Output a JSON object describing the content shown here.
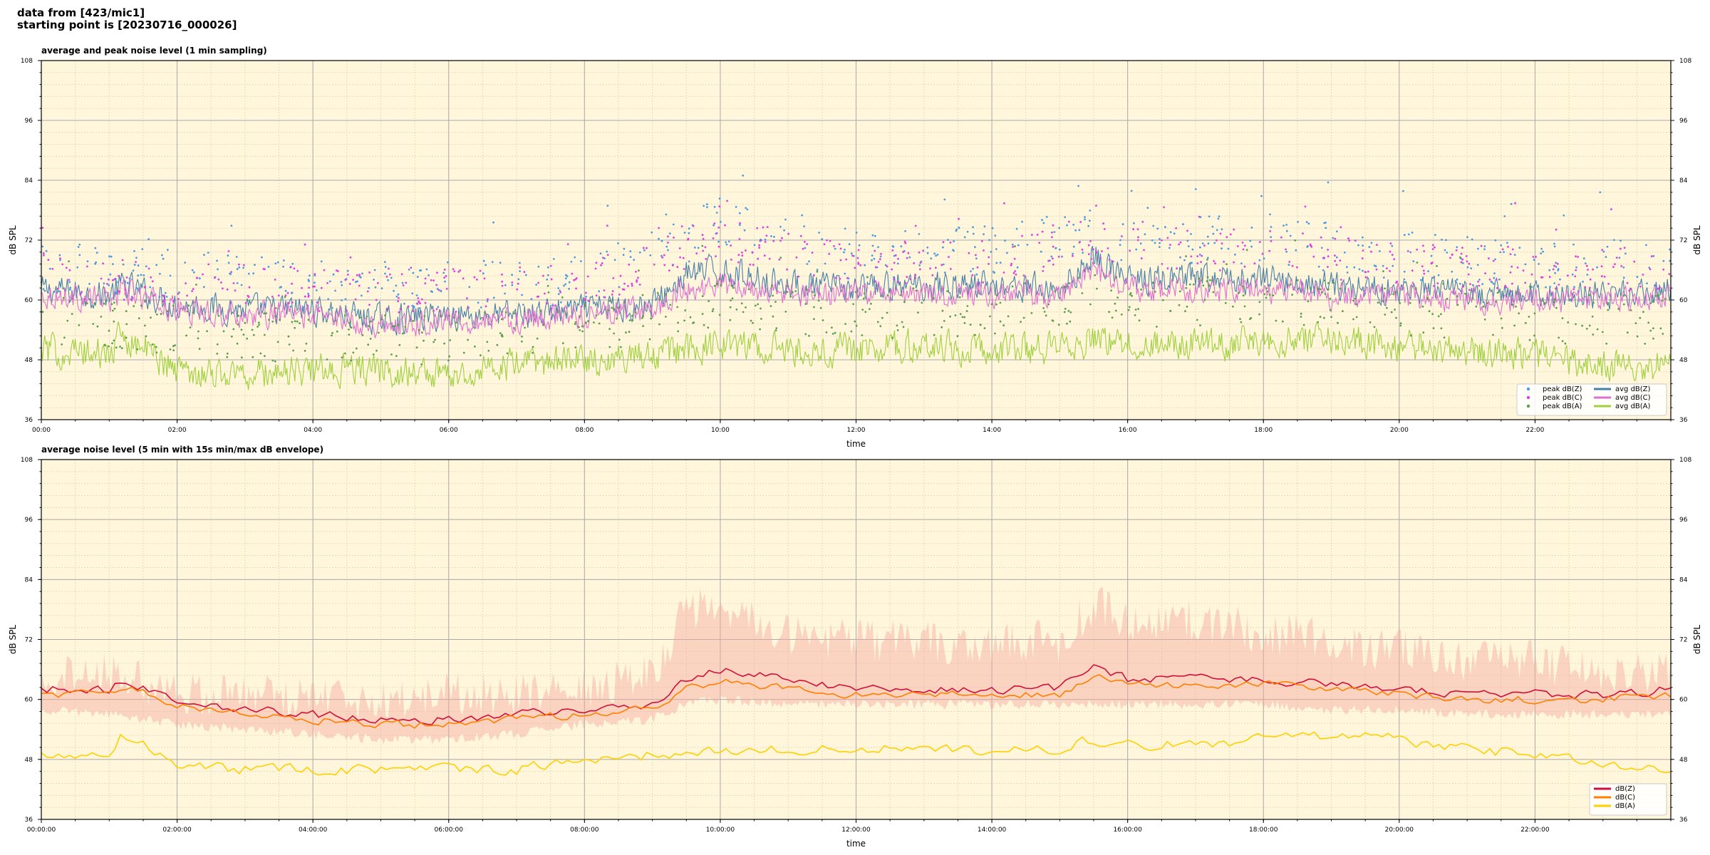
{
  "header": {
    "line1": "data from [423/mic1]",
    "line2": "starting point is [20230716_000026]"
  },
  "chart_data": [
    {
      "type": "line",
      "title": "average and peak noise level (1 min sampling)",
      "xlabel": "time",
      "ylabel": "dB SPL",
      "ylabel_right": "dB SPL",
      "ylim": [
        36,
        108
      ],
      "yticks": [
        36,
        48,
        60,
        72,
        84,
        96,
        108
      ],
      "xlim_hours": [
        0,
        24
      ],
      "xticks": [
        "00:00",
        "02:00",
        "04:00",
        "06:00",
        "08:00",
        "10:00",
        "12:00",
        "14:00",
        "16:00",
        "18:00",
        "20:00",
        "22:00"
      ],
      "grid": true,
      "background": "#fff6dc",
      "legend": "lower-right",
      "legend_items": [
        {
          "label": "peak dB(Z)",
          "kind": "dot",
          "color": "#4f9be0"
        },
        {
          "label": "peak dB(C)",
          "kind": "dot",
          "color": "#e040e0"
        },
        {
          "label": "peak dB(A)",
          "kind": "dot",
          "color": "#5aa050"
        },
        {
          "label": "avg dB(Z)",
          "kind": "line",
          "color": "#4a7fa8"
        },
        {
          "label": "avg dB(C)",
          "kind": "line",
          "color": "#e070d0"
        },
        {
          "label": "avg dB(A)",
          "kind": "line",
          "color": "#a0d040"
        }
      ],
      "series": [
        {
          "name": "avg dB(Z)",
          "color": "#4a7fa8",
          "hours": [
            0,
            1,
            1.2,
            2,
            3,
            4,
            5,
            6,
            7,
            8,
            9,
            9.5,
            10,
            11,
            12,
            13,
            14,
            15,
            15.5,
            16,
            17,
            18,
            19,
            20,
            21,
            22,
            23,
            24
          ],
          "values": [
            62,
            61,
            63,
            59,
            58,
            58,
            56,
            57,
            57,
            58,
            59,
            65,
            66,
            63,
            62,
            63,
            63,
            62,
            69,
            64,
            64,
            64,
            63,
            62,
            61,
            61,
            61,
            62
          ],
          "noise": 4
        },
        {
          "name": "avg dB(C)",
          "color": "#e070d0",
          "hours": [
            0,
            1,
            1.2,
            2,
            3,
            4,
            5,
            6,
            7,
            8,
            9,
            9.5,
            10,
            11,
            12,
            13,
            14,
            15,
            15.5,
            16,
            17,
            18,
            19,
            20,
            21,
            22,
            23,
            24
          ],
          "values": [
            61,
            60,
            62,
            58,
            57,
            57,
            55,
            56,
            56,
            57,
            58,
            62,
            63,
            61,
            61,
            61,
            61,
            61,
            66,
            62,
            62,
            62,
            61,
            61,
            60,
            60,
            60,
            61
          ],
          "noise": 3.5
        },
        {
          "name": "avg dB(A)",
          "color": "#a0d040",
          "hours": [
            0,
            1,
            1.2,
            2,
            3,
            4,
            5,
            6,
            7,
            8,
            9,
            9.5,
            10,
            11,
            12,
            13,
            14,
            15,
            15.5,
            16,
            17,
            18,
            19,
            20,
            21,
            22,
            23,
            24
          ],
          "values": [
            50,
            49,
            53,
            46,
            45,
            46,
            46,
            45,
            47,
            48,
            49,
            50,
            51,
            50,
            50,
            51,
            50,
            50,
            52,
            51,
            51,
            52,
            52,
            51,
            50,
            49,
            47,
            47
          ],
          "noise": 4.5
        },
        {
          "name": "peak dB(Z)",
          "kind": "dots",
          "color": "#4f9be0",
          "hours": [
            0,
            2,
            4,
            6,
            8,
            9.5,
            10,
            11,
            12,
            14,
            15.5,
            16,
            18,
            20,
            22,
            24
          ],
          "values": [
            66,
            65,
            63,
            63,
            64,
            72,
            76,
            71,
            69,
            70,
            75,
            72,
            72,
            69,
            67,
            67
          ],
          "noise": 5
        },
        {
          "name": "peak dB(C)",
          "kind": "dots",
          "color": "#e040e0",
          "hours": [
            0,
            2,
            4,
            6,
            8,
            9.5,
            10,
            11,
            12,
            14,
            15.5,
            16,
            18,
            20,
            22,
            24
          ],
          "values": [
            65,
            63,
            62,
            62,
            63,
            70,
            73,
            69,
            67,
            68,
            72,
            70,
            70,
            67,
            66,
            66
          ],
          "noise": 4.5
        },
        {
          "name": "peak dB(A)",
          "kind": "dots",
          "color": "#5aa050",
          "hours": [
            0,
            2,
            4,
            6,
            8,
            9.5,
            10,
            11,
            12,
            14,
            15.5,
            16,
            18,
            20,
            22,
            24
          ],
          "values": [
            56,
            54,
            52,
            52,
            54,
            58,
            60,
            58,
            57,
            58,
            61,
            59,
            60,
            58,
            56,
            56
          ],
          "noise": 5
        }
      ]
    },
    {
      "type": "line",
      "title": "average noise level (5 min with 15s min/max dB envelope)",
      "xlabel": "time",
      "ylabel": "dB SPL",
      "ylabel_right": "dB SPL",
      "ylim": [
        36,
        108
      ],
      "yticks": [
        36,
        48,
        60,
        72,
        84,
        96,
        108
      ],
      "xlim_hours": [
        0,
        24
      ],
      "xticks": [
        "00:00:00",
        "02:00:00",
        "04:00:00",
        "06:00:00",
        "08:00:00",
        "10:00:00",
        "12:00:00",
        "14:00:00",
        "16:00:00",
        "18:00:00",
        "20:00:00",
        "22:00:00"
      ],
      "grid": true,
      "background": "#fff6dc",
      "legend": "lower-right",
      "legend_items": [
        {
          "label": "dB(Z)",
          "kind": "line",
          "color": "#d0103a"
        },
        {
          "label": "dB(C)",
          "kind": "line",
          "color": "#ff8000"
        },
        {
          "label": "dB(A)",
          "kind": "line",
          "color": "#ffd000"
        }
      ],
      "envelope": {
        "color": "#f4a9a0",
        "opacity": 0.45,
        "hours": [
          0,
          1,
          2,
          3,
          4,
          5,
          6,
          7,
          8,
          9,
          9.5,
          10,
          11,
          12,
          13,
          14,
          15,
          15.5,
          16,
          17,
          18,
          19,
          20,
          21,
          22,
          23,
          24
        ],
        "upper": [
          68,
          70,
          66,
          65,
          66,
          64,
          66,
          65,
          67,
          70,
          82,
          84,
          78,
          76,
          76,
          76,
          76,
          84,
          80,
          80,
          78,
          76,
          74,
          72,
          72,
          70,
          70
        ],
        "lower": [
          57,
          56,
          54,
          53,
          52,
          51,
          51,
          52,
          54,
          55,
          58,
          59,
          58,
          58,
          58,
          58,
          58,
          58,
          58,
          58,
          58,
          57,
          57,
          56,
          56,
          56,
          56
        ]
      },
      "series": [
        {
          "name": "dB(Z)",
          "color": "#d0103a",
          "hours": [
            0,
            1,
            1.2,
            2,
            3,
            4,
            5,
            6,
            7,
            8,
            9,
            9.5,
            10,
            11,
            12,
            13,
            14,
            15,
            15.5,
            16,
            17,
            18,
            19,
            20,
            21,
            22,
            23,
            24
          ],
          "values": [
            62,
            62,
            64,
            60,
            58,
            57,
            56,
            56,
            57,
            58,
            59,
            64,
            66,
            64,
            62,
            62,
            62,
            62,
            67,
            64,
            64,
            64,
            63,
            62,
            61,
            61,
            61,
            62
          ],
          "noise": 1.2
        },
        {
          "name": "dB(C)",
          "color": "#ff8000",
          "hours": [
            0,
            1,
            1.2,
            2,
            3,
            4,
            5,
            6,
            7,
            8,
            9,
            9.5,
            10,
            11,
            12,
            13,
            14,
            15,
            15.5,
            16,
            17,
            18,
            19,
            20,
            21,
            22,
            23,
            24
          ],
          "values": [
            61,
            61,
            63,
            59,
            57,
            56,
            55,
            55,
            56,
            57,
            58,
            62,
            64,
            62,
            61,
            61,
            61,
            61,
            65,
            63,
            63,
            63,
            62,
            61,
            60,
            60,
            60,
            61
          ],
          "noise": 1.1
        },
        {
          "name": "dB(A)",
          "color": "#ffd000",
          "hours": [
            0,
            1,
            1.2,
            2,
            3,
            4,
            5,
            6,
            7,
            8,
            9,
            9.5,
            10,
            11,
            12,
            13,
            14,
            15,
            15.5,
            16,
            17,
            18,
            19,
            20,
            21,
            22,
            23,
            24
          ],
          "values": [
            49,
            49,
            53,
            47,
            46,
            46,
            46,
            46,
            46,
            48,
            49,
            49,
            50,
            50,
            50,
            50,
            50,
            50,
            52,
            51,
            51,
            52,
            53,
            52,
            50,
            49,
            47,
            46
          ],
          "noise": 1.5
        }
      ]
    }
  ]
}
